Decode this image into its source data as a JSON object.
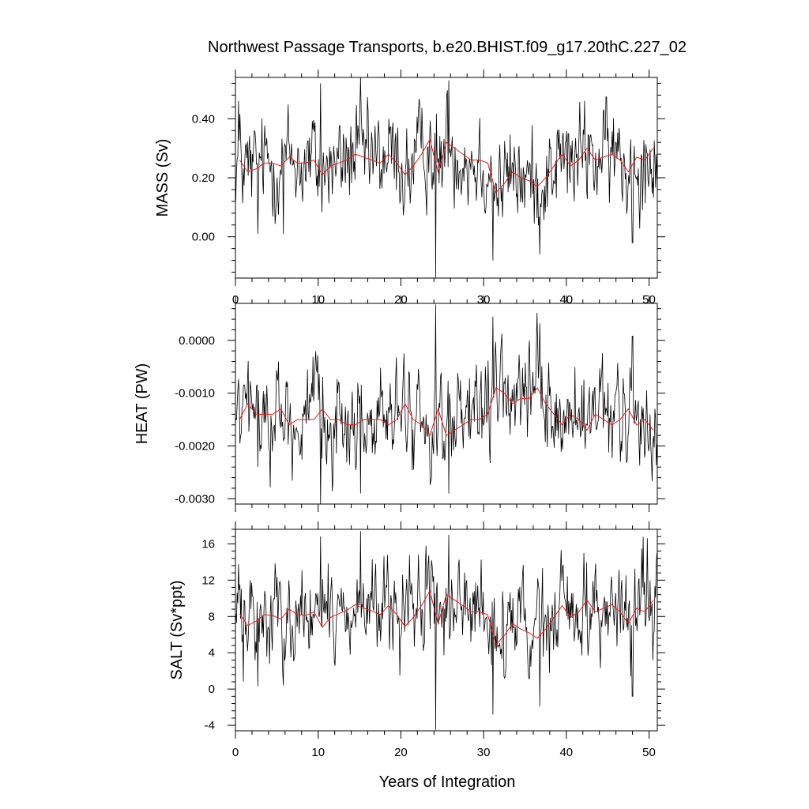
{
  "figure": {
    "title": "Northwest Passage Transports, b.e20.BHIST.f09_g17.20thC.227_02",
    "xlabel": "Years of Integration"
  },
  "chart_data": [
    {
      "type": "line",
      "panel": "mass",
      "ylabel": "MASS (Sv)",
      "xlim": [
        0,
        51
      ],
      "ylim": [
        -0.14,
        0.54
      ],
      "xticks": [
        0,
        10,
        20,
        30,
        40,
        50
      ],
      "xtick_labels": [
        "0",
        "10",
        "20",
        "30",
        "40",
        "50"
      ],
      "yticks": [
        0.0,
        0.2,
        0.4
      ],
      "ytick_labels": [
        "0.00",
        "0.20",
        "0.40"
      ],
      "series": [
        {
          "role": "monthly",
          "color": "#000000",
          "base": 0.255,
          "noise": 0.075,
          "spikes": [
            [
              0.35,
              0.46
            ],
            [
              10.3,
              0.52
            ],
            [
              15.1,
              0.54
            ],
            [
              24.2,
              -0.14
            ],
            [
              25.8,
              0.53
            ],
            [
              31.1,
              -0.08
            ],
            [
              36.8,
              -0.06
            ],
            [
              48.0,
              -0.02
            ],
            [
              2.7,
              0.01
            ],
            [
              5.8,
              0.01
            ]
          ]
        },
        {
          "role": "annual_mean",
          "color": "#e8191e",
          "x": [
            0.5,
            1.5,
            2.5,
            3.5,
            4.5,
            5.5,
            6.5,
            7.5,
            8.5,
            9.5,
            10.5,
            11.5,
            12.5,
            13.5,
            14.5,
            15.5,
            16.5,
            17.5,
            18.5,
            19.5,
            20.5,
            21.5,
            22.5,
            23.5,
            24.5,
            25.5,
            26.5,
            27.5,
            28.5,
            29.5,
            30.5,
            31.5,
            32.5,
            33.5,
            34.5,
            35.5,
            36.5,
            37.5,
            38.5,
            39.5,
            40.5,
            41.5,
            42.5,
            43.5,
            44.5,
            45.5,
            46.5,
            47.5,
            48.5,
            49.5,
            50.5
          ],
          "y": [
            0.26,
            0.22,
            0.23,
            0.25,
            0.25,
            0.24,
            0.27,
            0.25,
            0.25,
            0.26,
            0.21,
            0.24,
            0.25,
            0.26,
            0.28,
            0.27,
            0.26,
            0.25,
            0.28,
            0.25,
            0.21,
            0.24,
            0.28,
            0.33,
            0.22,
            0.32,
            0.3,
            0.28,
            0.26,
            0.26,
            0.25,
            0.15,
            0.18,
            0.22,
            0.2,
            0.19,
            0.17,
            0.2,
            0.24,
            0.28,
            0.24,
            0.26,
            0.3,
            0.26,
            0.27,
            0.28,
            0.26,
            0.22,
            0.27,
            0.26,
            0.3
          ]
        }
      ]
    },
    {
      "type": "line",
      "panel": "heat",
      "ylabel": "HEAT (PW)",
      "xlim": [
        0,
        51
      ],
      "ylim": [
        -0.0031,
        0.0007
      ],
      "xticks": [
        0,
        10,
        20,
        30,
        40,
        50
      ],
      "xtick_labels": [
        "",
        "",
        "",
        "",
        "",
        ""
      ],
      "yticks": [
        -0.003,
        -0.002,
        -0.001,
        0.0
      ],
      "ytick_labels": [
        "-0.0030",
        "-0.0020",
        "-0.0010",
        "0.0000"
      ],
      "series": [
        {
          "role": "monthly",
          "color": "#000000",
          "base": -0.00145,
          "noise": 0.0004,
          "spikes": [
            [
              10.3,
              -0.0031
            ],
            [
              24.2,
              0.00068
            ],
            [
              31.1,
              0.00045
            ],
            [
              36.8,
              0.00032
            ],
            [
              15.1,
              -0.0029
            ],
            [
              25.8,
              -0.0029
            ],
            [
              48.0,
              8e-05
            ],
            [
              2.7,
              -0.0024
            ]
          ]
        },
        {
          "role": "annual_mean",
          "color": "#e8191e",
          "x": [
            0.5,
            1.5,
            2.5,
            3.5,
            4.5,
            5.5,
            6.5,
            7.5,
            8.5,
            9.5,
            10.5,
            11.5,
            12.5,
            13.5,
            14.5,
            15.5,
            16.5,
            17.5,
            18.5,
            19.5,
            20.5,
            21.5,
            22.5,
            23.5,
            24.5,
            25.5,
            26.5,
            27.5,
            28.5,
            29.5,
            30.5,
            31.5,
            32.5,
            33.5,
            34.5,
            35.5,
            36.5,
            37.5,
            38.5,
            39.5,
            40.5,
            41.5,
            42.5,
            43.5,
            44.5,
            45.5,
            46.5,
            47.5,
            48.5,
            49.5,
            50.5
          ],
          "y": [
            -0.0015,
            -0.0012,
            -0.0014,
            -0.0014,
            -0.0014,
            -0.0013,
            -0.0016,
            -0.0015,
            -0.0015,
            -0.0015,
            -0.0013,
            -0.0015,
            -0.0015,
            -0.0016,
            -0.0016,
            -0.0015,
            -0.0015,
            -0.0015,
            -0.0016,
            -0.0015,
            -0.0012,
            -0.0015,
            -0.0016,
            -0.0018,
            -0.0013,
            -0.0018,
            -0.0017,
            -0.0016,
            -0.0015,
            -0.0015,
            -0.0014,
            -0.0009,
            -0.001,
            -0.0012,
            -0.0011,
            -0.0011,
            -0.0009,
            -0.0012,
            -0.0014,
            -0.0016,
            -0.0014,
            -0.0015,
            -0.0017,
            -0.0014,
            -0.0015,
            -0.0016,
            -0.0015,
            -0.0013,
            -0.0016,
            -0.0015,
            -0.0017
          ]
        }
      ]
    },
    {
      "type": "line",
      "panel": "salt",
      "ylabel": "SALT (Sv*ppt)",
      "xlim": [
        0,
        51
      ],
      "ylim": [
        -4.6,
        17.6
      ],
      "xticks": [
        0,
        10,
        20,
        30,
        40,
        50
      ],
      "xtick_labels": [
        "0",
        "10",
        "20",
        "30",
        "40",
        "50"
      ],
      "yticks": [
        -4,
        0,
        4,
        8,
        12,
        16
      ],
      "ytick_labels": [
        "-4",
        "0",
        "4",
        "8",
        "12",
        "16"
      ],
      "series": [
        {
          "role": "monthly",
          "color": "#000000",
          "base": 8.2,
          "noise": 2.4,
          "spikes": [
            [
              10.3,
              16.8
            ],
            [
              15.1,
              17.4
            ],
            [
              24.2,
              -4.5
            ],
            [
              25.8,
              17.0
            ],
            [
              31.1,
              -2.8
            ],
            [
              36.8,
              -1.9
            ],
            [
              48.0,
              -0.8
            ],
            [
              2.7,
              0.3
            ],
            [
              5.8,
              0.4
            ]
          ]
        },
        {
          "role": "annual_mean",
          "color": "#e8191e",
          "x": [
            0.5,
            1.5,
            2.5,
            3.5,
            4.5,
            5.5,
            6.5,
            7.5,
            8.5,
            9.5,
            10.5,
            11.5,
            12.5,
            13.5,
            14.5,
            15.5,
            16.5,
            17.5,
            18.5,
            19.5,
            20.5,
            21.5,
            22.5,
            23.5,
            24.5,
            25.5,
            26.5,
            27.5,
            28.5,
            29.5,
            30.5,
            31.5,
            32.5,
            33.5,
            34.5,
            35.5,
            36.5,
            37.5,
            38.5,
            39.5,
            40.5,
            41.5,
            42.5,
            43.5,
            44.5,
            45.5,
            46.5,
            47.5,
            48.5,
            49.5,
            50.5
          ],
          "y": [
            8.3,
            7.0,
            7.5,
            8.2,
            8.1,
            7.7,
            8.8,
            8.2,
            8.1,
            8.5,
            6.8,
            7.9,
            8.3,
            8.7,
            9.3,
            8.9,
            8.6,
            8.2,
            9.2,
            8.2,
            6.9,
            7.9,
            9.2,
            10.8,
            7.2,
            10.4,
            9.8,
            9.2,
            8.5,
            8.5,
            8.2,
            4.9,
            5.9,
            7.2,
            6.6,
            6.2,
            5.6,
            6.6,
            7.9,
            9.2,
            7.9,
            8.5,
            9.8,
            8.5,
            8.9,
            9.3,
            8.5,
            7.2,
            8.9,
            8.5,
            9.8
          ]
        }
      ]
    }
  ]
}
